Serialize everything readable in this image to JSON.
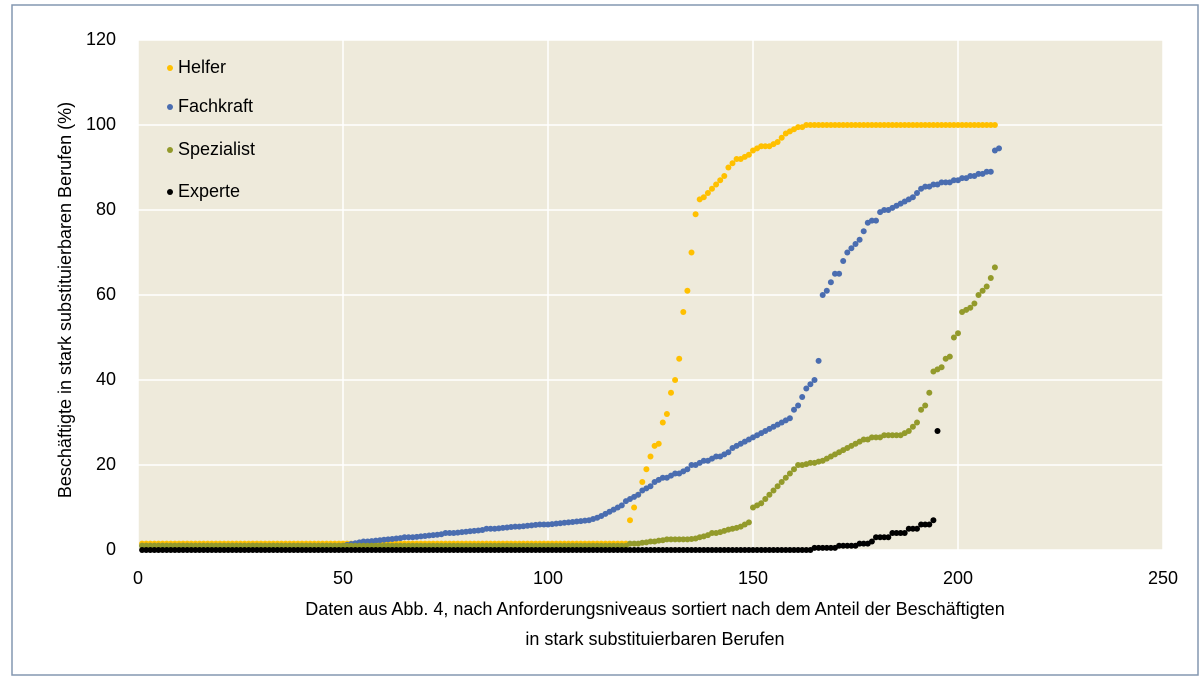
{
  "chart_data": {
    "type": "scatter",
    "xlabel": [
      "Daten aus Abb. 4, nach Anforderungsniveaus sortiert nach dem Anteil der Beschäftigten",
      "in stark substituierbaren Berufen"
    ],
    "ylabel": "Beschäftigte in stark substituierbaren Berufen (%)",
    "xlim": [
      0,
      250
    ],
    "xticks": [
      0,
      50,
      100,
      150,
      200,
      250
    ],
    "ylim": [
      0,
      120
    ],
    "yticks": [
      0,
      20,
      40,
      60,
      80,
      100,
      120
    ],
    "grid": true,
    "legend": "upper left",
    "x": [
      1,
      2,
      3,
      4,
      5,
      6,
      7,
      8,
      9,
      10,
      11,
      12,
      13,
      14,
      15,
      16,
      17,
      18,
      19,
      20,
      21,
      22,
      23,
      24,
      25,
      26,
      27,
      28,
      29,
      30,
      31,
      32,
      33,
      34,
      35,
      36,
      37,
      38,
      39,
      40,
      41,
      42,
      43,
      44,
      45,
      46,
      47,
      48,
      49,
      50,
      51,
      52,
      53,
      54,
      55,
      56,
      57,
      58,
      59,
      60,
      61,
      62,
      63,
      64,
      65,
      66,
      67,
      68,
      69,
      70,
      71,
      72,
      73,
      74,
      75,
      76,
      77,
      78,
      79,
      80,
      81,
      82,
      83,
      84,
      85,
      86,
      87,
      88,
      89,
      90,
      91,
      92,
      93,
      94,
      95,
      96,
      97,
      98,
      99,
      100,
      101,
      102,
      103,
      104,
      105,
      106,
      107,
      108,
      109,
      110,
      111,
      112,
      113,
      114,
      115,
      116,
      117,
      118,
      119,
      120,
      121,
      122,
      123,
      124,
      125,
      126,
      127,
      128,
      129,
      130,
      131,
      132,
      133,
      134,
      135,
      136,
      137,
      138,
      139,
      140,
      141,
      142,
      143,
      144,
      145,
      146,
      147,
      148,
      149,
      150,
      151,
      152,
      153,
      154,
      155,
      156,
      157,
      158,
      159,
      160,
      161,
      162,
      163,
      164,
      165,
      166,
      167,
      168,
      169,
      170,
      171,
      172,
      173,
      174,
      175,
      176,
      177,
      178,
      179,
      180,
      181,
      182,
      183,
      184,
      185,
      186,
      187,
      188,
      189,
      190,
      191,
      192,
      193,
      194,
      195,
      196,
      197,
      198,
      199,
      200,
      201,
      202,
      203,
      204,
      205,
      206,
      207,
      208,
      209,
      210
    ],
    "series": [
      {
        "name": "Helfer",
        "color": "#ffc000",
        "values": [
          1.5,
          1.5,
          1.5,
          1.5,
          1.5,
          1.5,
          1.5,
          1.5,
          1.5,
          1.5,
          1.5,
          1.5,
          1.5,
          1.5,
          1.5,
          1.5,
          1.5,
          1.5,
          1.5,
          1.5,
          1.5,
          1.5,
          1.5,
          1.5,
          1.5,
          1.5,
          1.5,
          1.5,
          1.5,
          1.5,
          1.5,
          1.5,
          1.5,
          1.5,
          1.5,
          1.5,
          1.5,
          1.5,
          1.5,
          1.5,
          1.5,
          1.5,
          1.5,
          1.5,
          1.5,
          1.5,
          1.5,
          1.5,
          1.5,
          1.5,
          1.5,
          1.5,
          1.5,
          1.5,
          1.5,
          1.5,
          1.5,
          1.5,
          1.5,
          1.5,
          1.5,
          1.5,
          1.5,
          1.5,
          1.5,
          1.5,
          1.5,
          1.5,
          1.5,
          1.5,
          1.5,
          1.5,
          1.5,
          1.5,
          1.5,
          1.5,
          1.5,
          1.5,
          1.5,
          1.5,
          1.5,
          1.5,
          1.5,
          1.5,
          1.5,
          1.5,
          1.5,
          1.5,
          1.5,
          1.5,
          1.5,
          1.5,
          1.5,
          1.5,
          1.5,
          1.5,
          1.5,
          1.5,
          1.5,
          1.5,
          1.5,
          1.5,
          1.5,
          1.5,
          1.5,
          1.5,
          1.5,
          1.5,
          1.5,
          1.5,
          1.5,
          1.5,
          1.5,
          1.5,
          1.5,
          1.5,
          1.5,
          1.5,
          1.5,
          7,
          10,
          13,
          16,
          19,
          22,
          24.5,
          25,
          30,
          32,
          37,
          40,
          45,
          56,
          61,
          70,
          79,
          82.5,
          83,
          84,
          85,
          86,
          87,
          88,
          90,
          91,
          92,
          92,
          92.5,
          93,
          94,
          94.5,
          95,
          95,
          95,
          95.5,
          96,
          97,
          98,
          98.5,
          99,
          99.5,
          99.5,
          100,
          100,
          100,
          100,
          100,
          100,
          100,
          100,
          100,
          100,
          100,
          100,
          100,
          100,
          100,
          100,
          100,
          100,
          100,
          100,
          100,
          100,
          100,
          100,
          100,
          100,
          100,
          100,
          100,
          100,
          100,
          100,
          100,
          100,
          100,
          100,
          100,
          100,
          100,
          100,
          100,
          100,
          100,
          100,
          100,
          100,
          100,
          null
        ]
      },
      {
        "name": "Fachkraft",
        "color": "#4a6db0",
        "values": [
          1,
          1,
          1,
          1,
          1,
          1,
          1,
          1,
          1,
          1,
          1,
          1,
          1,
          1,
          1,
          1,
          1,
          1,
          1,
          1,
          1,
          1,
          1,
          1,
          1,
          1,
          1,
          1,
          1,
          1,
          1,
          1,
          1,
          1,
          1,
          1,
          1,
          1,
          1,
          1,
          1,
          1,
          1,
          1,
          1,
          1,
          1,
          1,
          1,
          1,
          1.2,
          1.4,
          1.6,
          1.8,
          2,
          2,
          2.1,
          2.2,
          2.3,
          2.4,
          2.5,
          2.6,
          2.7,
          2.8,
          3,
          3,
          3,
          3.1,
          3.2,
          3.3,
          3.4,
          3.5,
          3.6,
          3.7,
          4,
          4,
          4,
          4.1,
          4.2,
          4.3,
          4.4,
          4.5,
          4.6,
          4.7,
          5,
          5,
          5,
          5.1,
          5.2,
          5.3,
          5.4,
          5.5,
          5.5,
          5.6,
          5.7,
          5.8,
          5.9,
          6,
          6,
          6,
          6.1,
          6.2,
          6.3,
          6.4,
          6.5,
          6.6,
          6.7,
          6.8,
          6.9,
          7,
          7.3,
          7.6,
          8,
          8.5,
          9,
          9.5,
          10,
          10.5,
          11.5,
          12,
          12.5,
          13,
          14,
          14.5,
          15,
          16,
          16.5,
          17,
          17,
          17.5,
          18,
          18,
          18.5,
          19,
          20,
          20,
          20.5,
          21,
          21,
          21.5,
          22,
          22,
          22.5,
          23,
          24,
          24.5,
          25,
          25.5,
          26,
          26.5,
          27,
          27.5,
          28,
          28.5,
          29,
          29.5,
          30,
          30.5,
          31,
          33,
          34,
          36,
          38,
          39,
          40,
          44.5,
          60,
          61,
          63,
          65,
          65,
          68,
          70,
          71,
          72,
          73,
          75,
          77,
          77.5,
          77.5,
          79.5,
          80,
          80,
          80.5,
          81,
          81.5,
          82,
          82.5,
          83,
          84,
          85,
          85.5,
          85.5,
          86,
          86,
          86.5,
          86.5,
          86.5,
          87,
          87,
          87.5,
          87.5,
          88,
          88,
          88.5,
          88.5,
          89,
          89,
          94,
          94.5
        ]
      },
      {
        "name": "Spezialist",
        "color": "#939a2b",
        "values": [
          1,
          1,
          1,
          1,
          1,
          1,
          1,
          1,
          1,
          1,
          1,
          1,
          1,
          1,
          1,
          1,
          1,
          1,
          1,
          1,
          1,
          1,
          1,
          1,
          1,
          1,
          1,
          1,
          1,
          1,
          1,
          1,
          1,
          1,
          1,
          1,
          1,
          1,
          1,
          1,
          1,
          1,
          1,
          1,
          1,
          1,
          1,
          1,
          1,
          1,
          1,
          1,
          1,
          1,
          1,
          1,
          1,
          1,
          1,
          1,
          1,
          1,
          1,
          1,
          1,
          1,
          1,
          1,
          1,
          1,
          1,
          1,
          1,
          1,
          1,
          1,
          1,
          1,
          1,
          1,
          1,
          1,
          1,
          1,
          1,
          1,
          1,
          1,
          1,
          1,
          1,
          1,
          1,
          1,
          1,
          1,
          1,
          1,
          1,
          1,
          1,
          1,
          1,
          1,
          1,
          1,
          1,
          1,
          1,
          1,
          1,
          1,
          1,
          1,
          1,
          1,
          1,
          1,
          1,
          1.5,
          1.5,
          1.5,
          1.7,
          1.8,
          2,
          2,
          2.2,
          2.3,
          2.5,
          2.5,
          2.5,
          2.5,
          2.5,
          2.5,
          2.6,
          2.7,
          3,
          3.2,
          3.5,
          4,
          4,
          4.2,
          4.5,
          4.8,
          5,
          5.2,
          5.5,
          6,
          6.5,
          10,
          10.5,
          11,
          12,
          13,
          14,
          15,
          16,
          17,
          18,
          19,
          20,
          20,
          20.2,
          20.5,
          20.5,
          20.8,
          21,
          21.5,
          22,
          22.5,
          23,
          23.5,
          24,
          24.5,
          25,
          25.5,
          26,
          26,
          26.5,
          26.5,
          26.5,
          27,
          27,
          27,
          27,
          27,
          27.5,
          28,
          29,
          30,
          33,
          34,
          37,
          42,
          42.5,
          43,
          45,
          45.5,
          50,
          51,
          56,
          56.5,
          57,
          58,
          60,
          61,
          62,
          64,
          66.5,
          null
        ]
      },
      {
        "name": "Experte",
        "color": "#000000",
        "values": [
          0,
          0,
          0,
          0,
          0,
          0,
          0,
          0,
          0,
          0,
          0,
          0,
          0,
          0,
          0,
          0,
          0,
          0,
          0,
          0,
          0,
          0,
          0,
          0,
          0,
          0,
          0,
          0,
          0,
          0,
          0,
          0,
          0,
          0,
          0,
          0,
          0,
          0,
          0,
          0,
          0,
          0,
          0,
          0,
          0,
          0,
          0,
          0,
          0,
          0,
          0,
          0,
          0,
          0,
          0,
          0,
          0,
          0,
          0,
          0,
          0,
          0,
          0,
          0,
          0,
          0,
          0,
          0,
          0,
          0,
          0,
          0,
          0,
          0,
          0,
          0,
          0,
          0,
          0,
          0,
          0,
          0,
          0,
          0,
          0,
          0,
          0,
          0,
          0,
          0,
          0,
          0,
          0,
          0,
          0,
          0,
          0,
          0,
          0,
          0,
          0,
          0,
          0,
          0,
          0,
          0,
          0,
          0,
          0,
          0,
          0,
          0,
          0,
          0,
          0,
          0,
          0,
          0,
          0,
          0,
          0,
          0,
          0,
          0,
          0,
          0,
          0,
          0,
          0,
          0,
          0,
          0,
          0,
          0,
          0,
          0,
          0,
          0,
          0,
          0,
          0,
          0,
          0,
          0,
          0,
          0,
          0,
          0,
          0,
          0,
          0,
          0,
          0,
          0,
          0,
          0,
          0,
          0,
          0,
          0,
          0,
          0,
          0,
          0,
          0.5,
          0.5,
          0.5,
          0.5,
          0.5,
          0.5,
          1,
          1,
          1,
          1,
          1,
          1.5,
          1.5,
          1.5,
          2,
          3,
          3,
          3,
          3,
          4,
          4,
          4,
          4,
          5,
          5,
          5,
          6,
          6,
          6,
          7,
          28,
          null,
          null,
          null,
          null,
          null,
          null,
          null,
          null,
          null,
          null,
          null,
          null,
          null,
          null,
          null
        ]
      }
    ]
  }
}
